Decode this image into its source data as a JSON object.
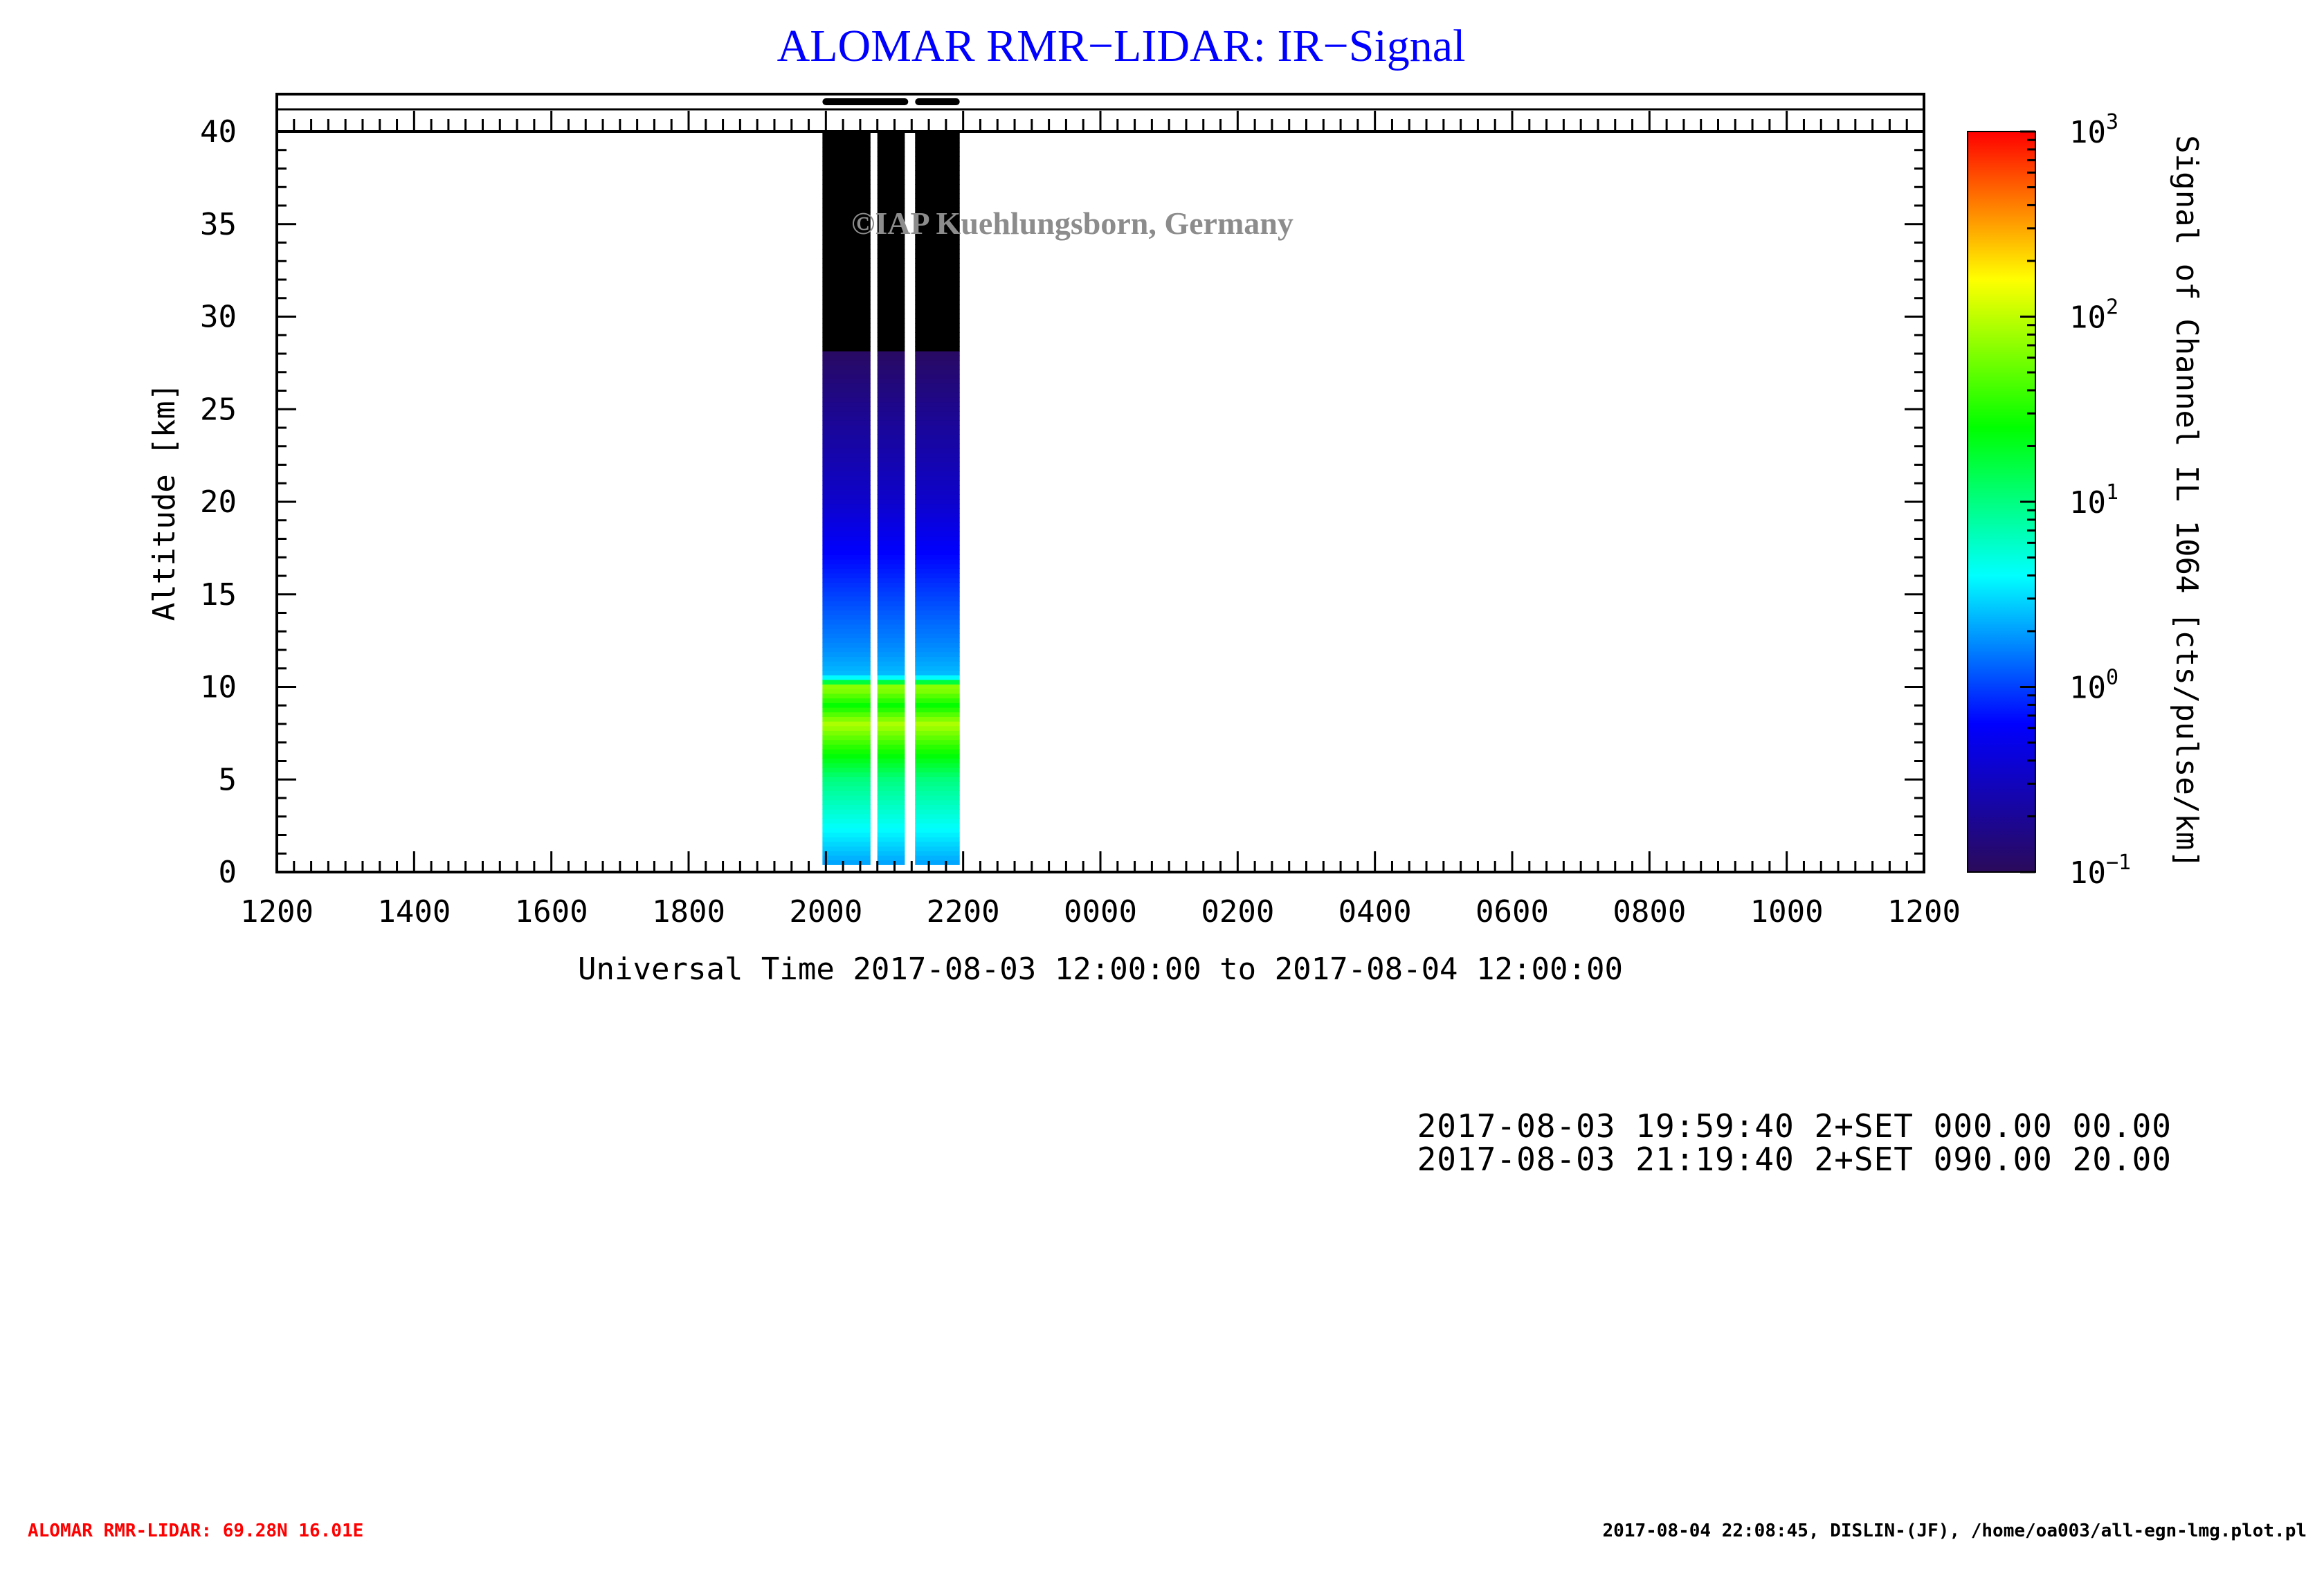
{
  "chart_data": {
    "type": "heatmap",
    "title": "ALOMAR RMR−LIDAR: IR−Signal",
    "xlabel": "Universal Time 2017-08-03 12:00:00 to 2017-08-04 12:00:00",
    "ylabel": "Altitude [km]",
    "colorbar_label": "Signal of Channel IL 1064 [cts/pulse/km]",
    "watermark": "©IAP Kuehlungsborn, Germany",
    "x_tick_labels": [
      "1200",
      "1400",
      "1600",
      "1800",
      "2000",
      "2200",
      "0000",
      "0200",
      "0400",
      "0600",
      "0800",
      "1000",
      "1200"
    ],
    "xlim_hours": [
      12,
      36
    ],
    "y_ticks": [
      0,
      5,
      10,
      15,
      20,
      25,
      30,
      35,
      40
    ],
    "ylim": [
      0,
      40
    ],
    "colorbar": {
      "scale": "log",
      "min": 0.1,
      "max": 1000,
      "tick_labels": [
        {
          "base": "10",
          "exp": "−1",
          "value": 0.1
        },
        {
          "base": "10",
          "exp": "0",
          "value": 1
        },
        {
          "base": "10",
          "exp": "1",
          "value": 10
        },
        {
          "base": "10",
          "exp": "2",
          "value": 100
        },
        {
          "base": "10",
          "exp": "3",
          "value": 1000
        }
      ],
      "colormap": [
        "#2a0a5a",
        "#0000ff",
        "#00ffff",
        "#00ff00",
        "#ffff00",
        "#ff0000"
      ]
    },
    "data_segments": [
      {
        "start_hour": 19.95,
        "end_hour": 20.65
      },
      {
        "start_hour": 20.75,
        "end_hour": 21.15
      },
      {
        "start_hour": 21.3,
        "end_hour": 21.95
      }
    ],
    "observation_bars": [
      {
        "start_hour": 19.95,
        "end_hour": 21.2
      },
      {
        "start_hour": 21.3,
        "end_hour": 21.95
      }
    ],
    "data_altitude_range_km": [
      0.4,
      40
    ],
    "signal_profile_log10": [
      {
        "alt": 0.4,
        "val": 0.3
      },
      {
        "alt": 2,
        "val": 0.55
      },
      {
        "alt": 5,
        "val": 1.0
      },
      {
        "alt": 7,
        "val": 1.6
      },
      {
        "alt": 8,
        "val": 1.95
      },
      {
        "alt": 9,
        "val": 1.4
      },
      {
        "alt": 10,
        "val": 1.9
      },
      {
        "alt": 10.6,
        "val": 0.4
      },
      {
        "alt": 12,
        "val": 0.25
      },
      {
        "alt": 15,
        "val": 0.0
      },
      {
        "alt": 20,
        "val": -0.45
      },
      {
        "alt": 25,
        "val": -0.75
      },
      {
        "alt": 28,
        "val": -0.95
      },
      {
        "alt": 30,
        "val": -1.5
      },
      {
        "alt": 40,
        "val": -2.0
      }
    ]
  },
  "info_lines": [
    "2017-08-03 19:59:40 2+SET 000.00 00.00",
    "2017-08-03 21:19:40 2+SET 090.00 20.00"
  ],
  "footer_left": "ALOMAR RMR-LIDAR: 69.28N 16.01E",
  "footer_right": "2017-08-04 22:08:45, DISLIN-(JF), /home/oa003/all-egn-lmg.plot.pl",
  "colors": {
    "title": "#0000ff",
    "footer_left": "#ff0000",
    "footer_right": "#000000",
    "watermark": "#8c8c8c",
    "no_signal": "#000000"
  }
}
